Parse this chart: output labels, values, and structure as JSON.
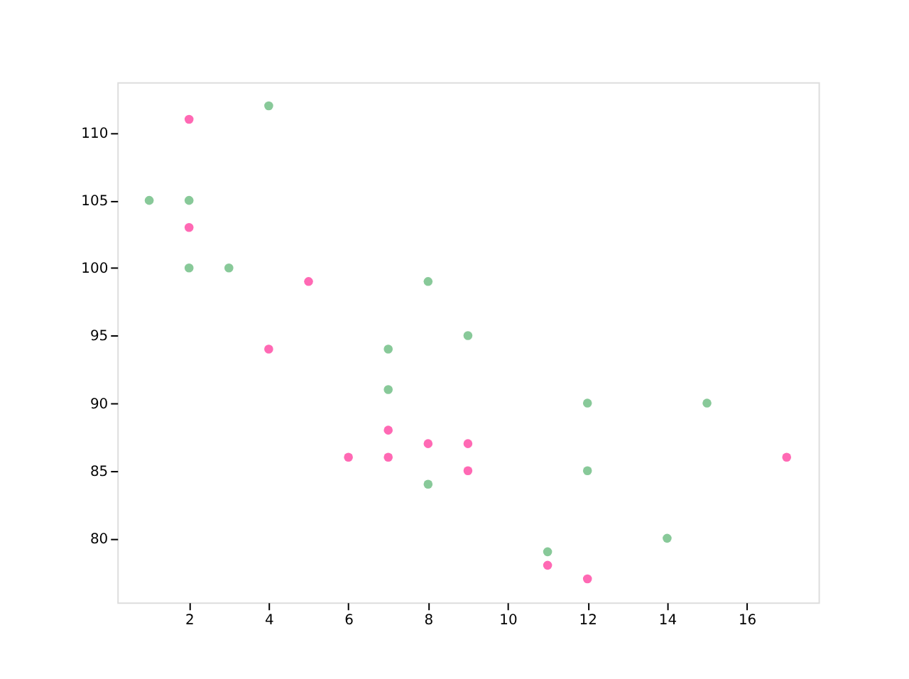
{
  "chart_data": {
    "type": "scatter",
    "marker": "circle",
    "grid": false,
    "legend": false,
    "xlim": [
      0.2,
      17.8
    ],
    "xticks": [
      2,
      4,
      6,
      8,
      10,
      12,
      14,
      16
    ],
    "ylim": [
      75.25,
      113.75
    ],
    "yticks": [
      80,
      85,
      90,
      95,
      100,
      105,
      110
    ],
    "series": [
      {
        "color": "#ff69b4",
        "x": [
          5,
          7,
          8,
          7,
          2,
          17,
          2,
          9,
          4,
          11,
          12,
          9,
          6
        ],
        "values": [
          99,
          86,
          87,
          88,
          111,
          86,
          103,
          87,
          94,
          78,
          77,
          85,
          86
        ]
      },
      {
        "color": "#88c999",
        "x": [
          2,
          2,
          8,
          1,
          15,
          8,
          12,
          9,
          7,
          3,
          11,
          4,
          7,
          14,
          12
        ],
        "values": [
          100,
          105,
          84,
          105,
          90,
          99,
          90,
          95,
          94,
          100,
          79,
          112,
          91,
          80,
          85
        ]
      }
    ]
  }
}
